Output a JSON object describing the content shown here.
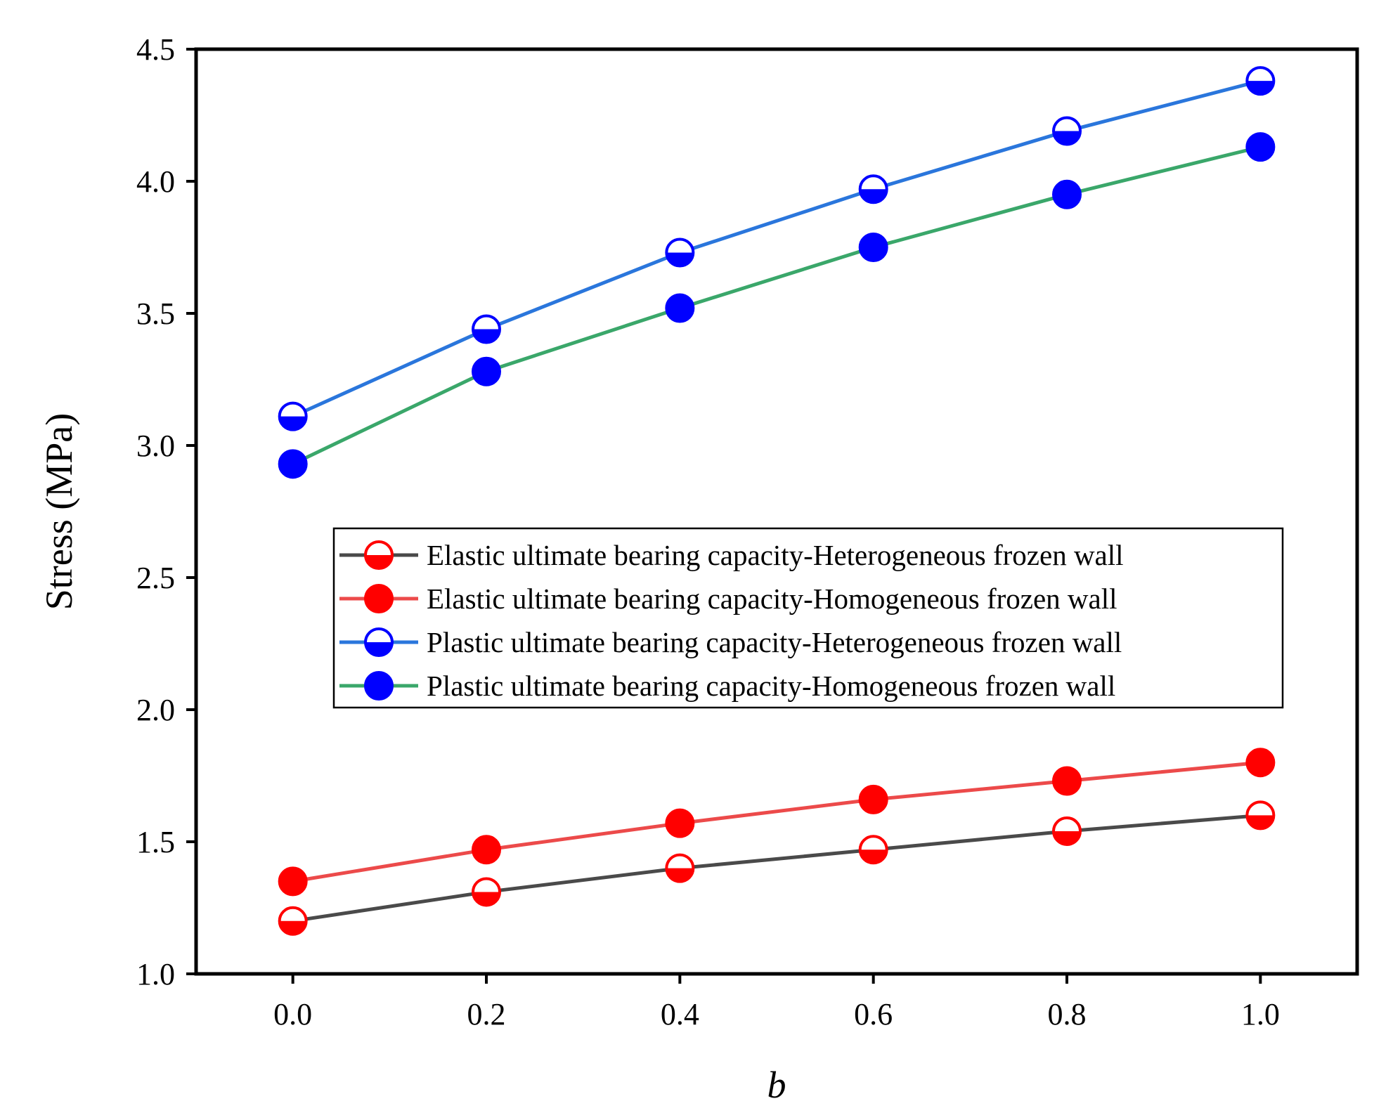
{
  "chart_data": {
    "type": "line",
    "xlabel": "b",
    "ylabel": "Stress (MPa)",
    "xlim": [
      -0.1,
      1.1
    ],
    "ylim": [
      1.0,
      4.5
    ],
    "x": [
      0.0,
      0.2,
      0.4,
      0.6,
      0.8,
      1.0
    ],
    "xticks": [
      "0.0",
      "0.2",
      "0.4",
      "0.6",
      "0.8",
      "1.0"
    ],
    "yticks": [
      "1.0",
      "1.5",
      "2.0",
      "2.5",
      "3.0",
      "3.5",
      "4.0",
      "4.5"
    ],
    "xtick_values": [
      0.0,
      0.2,
      0.4,
      0.6,
      0.8,
      1.0
    ],
    "ytick_values": [
      1.0,
      1.5,
      2.0,
      2.5,
      3.0,
      3.5,
      4.0,
      4.5
    ],
    "legend_position": "center-right",
    "grid": false,
    "series": [
      {
        "name": "Elastic ultimate bearing capacity-Heterogeneous frozen wall",
        "values": [
          1.2,
          1.31,
          1.4,
          1.47,
          1.54,
          1.6
        ],
        "line_color": "#4a4a4a",
        "marker_color": "#ff0000",
        "marker": "half-filled-bottom"
      },
      {
        "name": "Elastic ultimate bearing capacity-Homogeneous frozen wall",
        "values": [
          1.35,
          1.47,
          1.57,
          1.66,
          1.73,
          1.8
        ],
        "line_color": "#ec4a4a",
        "marker_color": "#ff0000",
        "marker": "filled"
      },
      {
        "name": "Plastic ultimate bearing capacity-Heterogeneous frozen wall",
        "values": [
          3.11,
          3.44,
          3.73,
          3.97,
          4.19,
          4.38
        ],
        "line_color": "#2a76dc",
        "marker_color": "#0000ff",
        "marker": "half-filled-bottom"
      },
      {
        "name": "Plastic ultimate bearing capacity-Homogeneous frozen wall",
        "values": [
          2.93,
          3.28,
          3.52,
          3.75,
          3.95,
          4.13
        ],
        "line_color": "#3aa76a",
        "marker_color": "#0000ff",
        "marker": "filled"
      }
    ]
  }
}
